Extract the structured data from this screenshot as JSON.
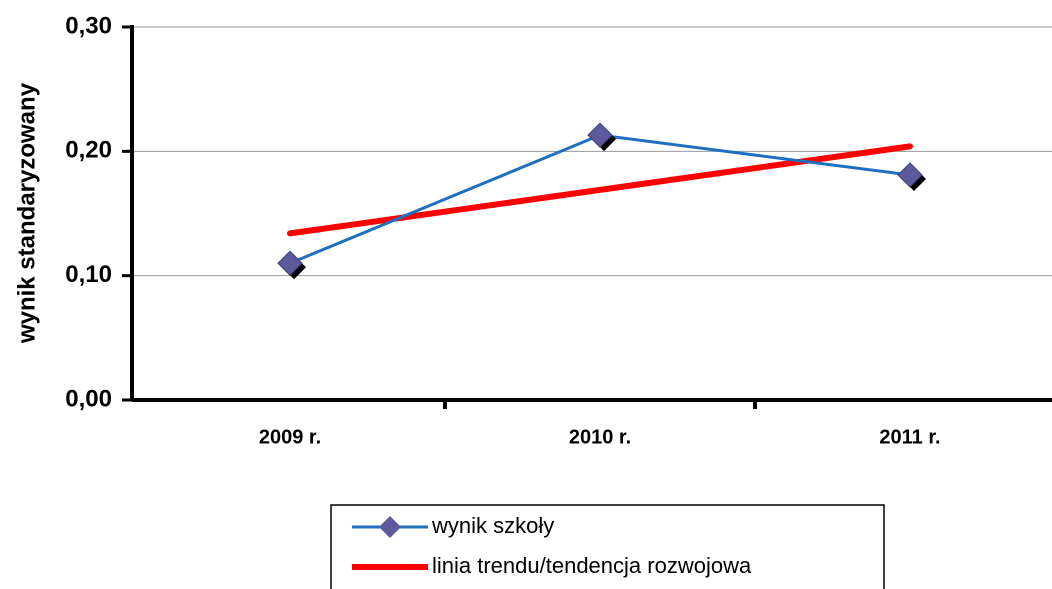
{
  "chart_data": {
    "type": "line",
    "y_label": "wynik standaryzowany",
    "categories": [
      "2009 r.",
      "2010 r.",
      "2011 r."
    ],
    "series": [
      {
        "name": "wynik szkoły",
        "color": "#1f6fc0",
        "marker_color": "#5a5a9c",
        "values": [
          0.11,
          0.213,
          0.181
        ]
      },
      {
        "name": "linia trendu/tendencja rozwojowa",
        "color": "#ff0000",
        "values": [
          0.134,
          0.169,
          0.204
        ]
      }
    ],
    "ylim": [
      0,
      0.3
    ],
    "yticks": [
      {
        "value": 0,
        "label": "0,00"
      },
      {
        "value": 0.1,
        "label": "0,10"
      },
      {
        "value": 0.2,
        "label": "0,20"
      },
      {
        "value": 0.3,
        "label": "0,30"
      }
    ],
    "grid": true
  }
}
